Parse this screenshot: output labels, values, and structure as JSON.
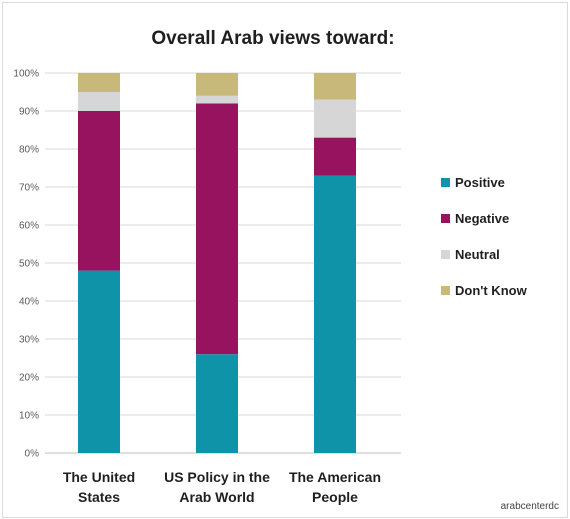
{
  "chart_data": {
    "type": "bar",
    "stacked": true,
    "title": "Overall Arab views toward:",
    "categories": [
      "The United States",
      "US Policy in the Arab World",
      "The American People"
    ],
    "category_lines": [
      [
        "The United",
        "States"
      ],
      [
        "US Policy in the",
        "Arab World"
      ],
      [
        "The American",
        "People"
      ]
    ],
    "series": [
      {
        "name": "Positive",
        "values": [
          48,
          26,
          73
        ],
        "color": "#0f93a8"
      },
      {
        "name": "Negative",
        "values": [
          42,
          66,
          10
        ],
        "color": "#98135f"
      },
      {
        "name": "Neutral",
        "values": [
          5,
          2,
          10
        ],
        "color": "#d6d6d6"
      },
      {
        "name": "Don't Know",
        "values": [
          5,
          6,
          7
        ],
        "color": "#c8b97a"
      }
    ],
    "ylim": [
      0,
      100
    ],
    "yticks": [
      "0%",
      "10%",
      "20%",
      "30%",
      "40%",
      "50%",
      "60%",
      "70%",
      "80%",
      "90%",
      "100%"
    ],
    "grid": true,
    "legend_position": "right"
  },
  "watermark": "arabcenterdc",
  "colors": {
    "grid": "#d9d9d9",
    "axis": "#bfbfbf"
  }
}
